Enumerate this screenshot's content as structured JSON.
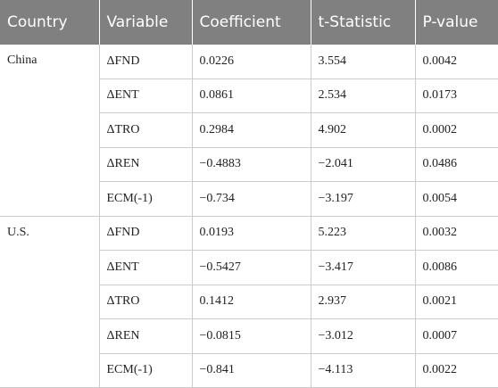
{
  "table": {
    "header": [
      "Country",
      "Variable",
      "Coefficient",
      "t-Statistic",
      "P-value"
    ],
    "groups": [
      {
        "country": "China",
        "rows": [
          [
            "ΔFND",
            "0.0226",
            "3.554",
            "0.0042"
          ],
          [
            "ΔENT",
            "0.0861",
            "2.534",
            "0.0173"
          ],
          [
            "ΔTRO",
            "0.2984",
            "4.902",
            "0.0002"
          ],
          [
            "ΔREN",
            "−0.4883",
            "−2.041",
            "0.0486"
          ],
          [
            "ECM(-1)",
            "−0.734",
            "−3.197",
            "0.0054"
          ]
        ]
      },
      {
        "country": "U.S.",
        "rows": [
          [
            "ΔFND",
            "0.0193",
            "5.223",
            "0.0032"
          ],
          [
            "ΔENT",
            "−0.5427",
            "−3.417",
            "0.0086"
          ],
          [
            "ΔTRO",
            "0.1412",
            "2.937",
            "0.0021"
          ],
          [
            "ΔREN",
            "−0.0815",
            "−3.012",
            "0.0007"
          ],
          [
            "ECM(-1)",
            "−0.841",
            "−4.113",
            "0.0022"
          ]
        ]
      }
    ]
  }
}
